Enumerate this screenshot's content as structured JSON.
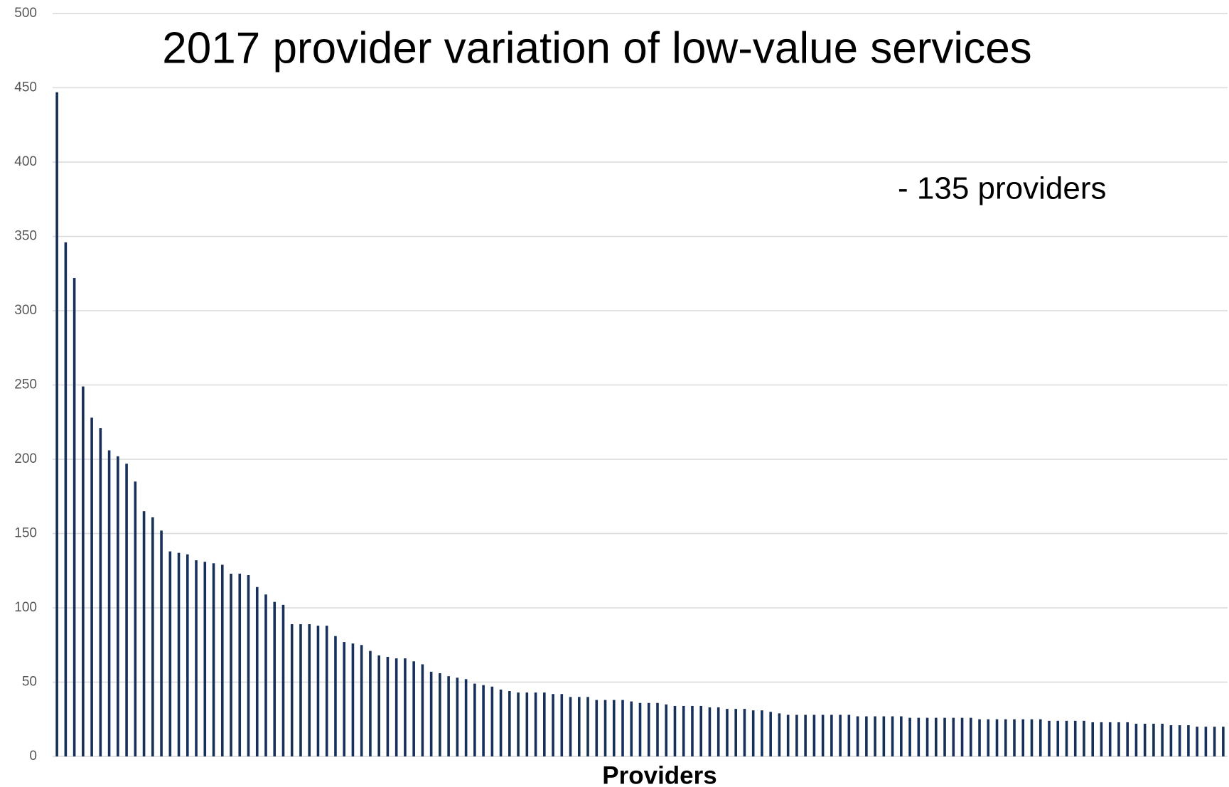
{
  "chart_data": {
    "type": "bar",
    "title": "2017 provider variation of low-value services",
    "annotation": "- 135 providers",
    "x_label": "Providers",
    "color": "#17305a",
    "grid": true,
    "ylim": [
      0,
      500
    ],
    "yticks": [
      0,
      50,
      100,
      150,
      200,
      250,
      300,
      350,
      400,
      450,
      500
    ],
    "values": [
      447,
      346,
      322,
      249,
      228,
      221,
      206,
      202,
      197,
      185,
      165,
      161,
      152,
      138,
      137,
      136,
      132,
      131,
      130,
      129,
      123,
      123,
      122,
      114,
      109,
      104,
      102,
      89,
      89,
      89,
      88,
      88,
      81,
      77,
      76,
      75,
      71,
      68,
      67,
      66,
      66,
      64,
      62,
      57,
      56,
      54,
      53,
      52,
      49,
      48,
      47,
      45,
      44,
      43,
      43,
      43,
      43,
      42,
      42,
      40,
      40,
      40,
      38,
      38,
      38,
      38,
      37,
      36,
      36,
      36,
      35,
      34,
      34,
      34,
      34,
      33,
      33,
      32,
      32,
      32,
      31,
      31,
      30,
      29,
      28,
      28,
      28,
      28,
      28,
      28,
      28,
      28,
      27,
      27,
      27,
      27,
      27,
      27,
      26,
      26,
      26,
      26,
      26,
      26,
      26,
      26,
      25,
      25,
      25,
      25,
      25,
      25,
      25,
      25,
      24,
      24,
      24,
      24,
      24,
      23,
      23,
      23,
      23,
      23,
      22,
      22,
      22,
      22,
      21,
      21,
      21,
      20,
      20,
      20,
      20
    ]
  }
}
